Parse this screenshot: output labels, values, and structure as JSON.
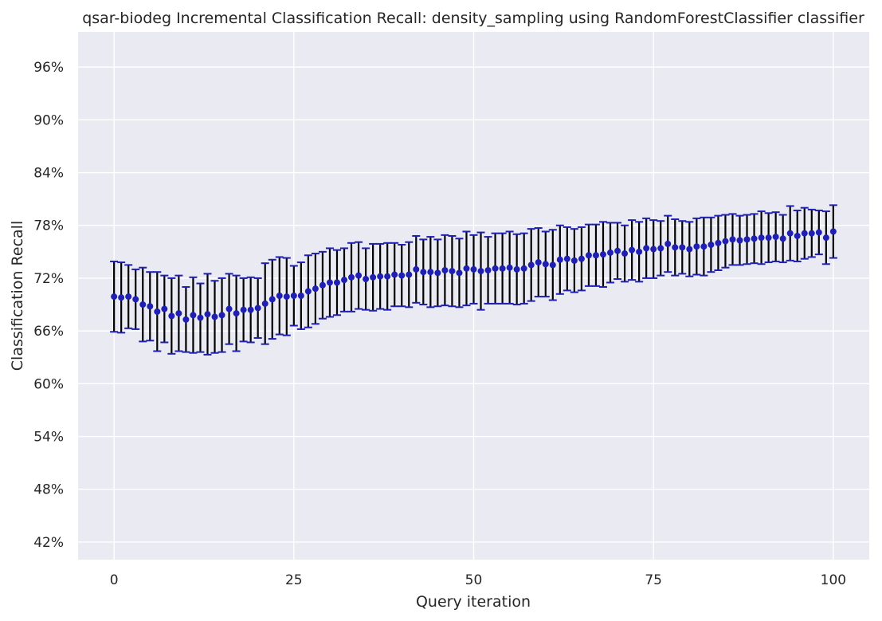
{
  "chart_data": {
    "type": "scatter",
    "title": "qsar-biodeg Incremental Classification Recall: density_sampling using RandomForestClassifier classifier",
    "xlabel": "Query iteration",
    "ylabel": "Classification Recall",
    "xlim": [
      -5,
      105
    ],
    "ylim": [
      0.4,
      1.0
    ],
    "x_ticks": [
      0,
      25,
      50,
      75,
      100
    ],
    "x_tick_labels": [
      "0",
      "25",
      "50",
      "75",
      "100"
    ],
    "y_ticks": [
      0.42,
      0.48,
      0.54,
      0.6,
      0.66,
      0.72,
      0.78,
      0.84,
      0.9,
      0.96
    ],
    "y_tick_labels": [
      "42%",
      "48%",
      "54%",
      "60%",
      "66%",
      "72%",
      "78%",
      "84%",
      "90%",
      "96%"
    ],
    "grid": true,
    "colors": {
      "background": "#eaeaf2",
      "grid": "#ffffff",
      "marker": "#1f1fb4",
      "error_bar": "#000000",
      "cap": "#1f1fb4"
    },
    "series": [
      {
        "marker": "circle",
        "error_bars": true,
        "x": [
          0,
          1,
          2,
          3,
          4,
          5,
          6,
          7,
          8,
          9,
          10,
          11,
          12,
          13,
          14,
          15,
          16,
          17,
          18,
          19,
          20,
          21,
          22,
          23,
          24,
          25,
          26,
          27,
          28,
          29,
          30,
          31,
          32,
          33,
          34,
          35,
          36,
          37,
          38,
          39,
          40,
          41,
          42,
          43,
          44,
          45,
          46,
          47,
          48,
          49,
          50,
          51,
          52,
          53,
          54,
          55,
          56,
          57,
          58,
          59,
          60,
          61,
          62,
          63,
          64,
          65,
          66,
          67,
          68,
          69,
          70,
          71,
          72,
          73,
          74,
          75,
          76,
          77,
          78,
          79,
          80,
          81,
          82,
          83,
          84,
          85,
          86,
          87,
          88,
          89,
          90,
          91,
          92,
          93,
          94,
          95,
          96,
          97,
          98,
          99,
          100
        ],
        "y": [
          0.699,
          0.698,
          0.699,
          0.696,
          0.69,
          0.688,
          0.682,
          0.685,
          0.677,
          0.68,
          0.673,
          0.678,
          0.675,
          0.679,
          0.676,
          0.678,
          0.685,
          0.68,
          0.684,
          0.684,
          0.686,
          0.691,
          0.696,
          0.7,
          0.699,
          0.7,
          0.7,
          0.705,
          0.708,
          0.712,
          0.715,
          0.715,
          0.718,
          0.721,
          0.723,
          0.719,
          0.721,
          0.722,
          0.722,
          0.724,
          0.723,
          0.724,
          0.73,
          0.727,
          0.727,
          0.726,
          0.729,
          0.728,
          0.726,
          0.731,
          0.73,
          0.728,
          0.729,
          0.731,
          0.731,
          0.732,
          0.73,
          0.731,
          0.735,
          0.738,
          0.736,
          0.735,
          0.741,
          0.742,
          0.74,
          0.742,
          0.746,
          0.746,
          0.747,
          0.749,
          0.751,
          0.748,
          0.752,
          0.75,
          0.754,
          0.753,
          0.754,
          0.759,
          0.755,
          0.755,
          0.753,
          0.756,
          0.756,
          0.758,
          0.76,
          0.762,
          0.764,
          0.763,
          0.764,
          0.765,
          0.766,
          0.766,
          0.767,
          0.765,
          0.771,
          0.768,
          0.771,
          0.771,
          0.772,
          0.766,
          0.773
        ],
        "yerr": [
          0.04,
          0.04,
          0.036,
          0.034,
          0.042,
          0.039,
          0.045,
          0.038,
          0.043,
          0.043,
          0.037,
          0.043,
          0.039,
          0.046,
          0.041,
          0.042,
          0.04,
          0.043,
          0.036,
          0.037,
          0.034,
          0.046,
          0.045,
          0.044,
          0.044,
          0.034,
          0.038,
          0.041,
          0.04,
          0.038,
          0.039,
          0.037,
          0.036,
          0.039,
          0.038,
          0.035,
          0.038,
          0.037,
          0.038,
          0.036,
          0.035,
          0.037,
          0.038,
          0.037,
          0.04,
          0.038,
          0.04,
          0.04,
          0.039,
          0.042,
          0.039,
          0.044,
          0.038,
          0.04,
          0.04,
          0.041,
          0.04,
          0.04,
          0.041,
          0.039,
          0.037,
          0.04,
          0.039,
          0.036,
          0.036,
          0.036,
          0.035,
          0.035,
          0.037,
          0.034,
          0.032,
          0.032,
          0.034,
          0.034,
          0.034,
          0.033,
          0.031,
          0.032,
          0.032,
          0.03,
          0.031,
          0.032,
          0.033,
          0.031,
          0.031,
          0.03,
          0.029,
          0.028,
          0.028,
          0.028,
          0.03,
          0.028,
          0.028,
          0.027,
          0.031,
          0.029,
          0.029,
          0.027,
          0.025,
          0.03,
          0.03
        ]
      }
    ]
  }
}
